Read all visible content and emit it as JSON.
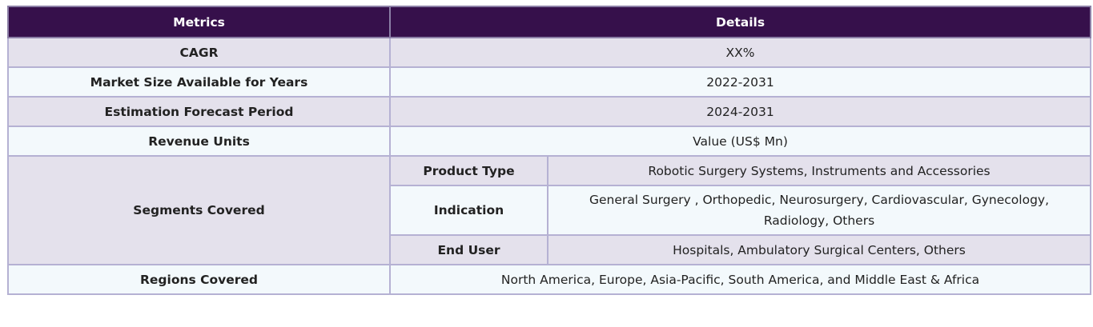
{
  "header": {
    "metrics": "Metrics",
    "details": "Details"
  },
  "rows": [
    {
      "metric": "CAGR",
      "detail": "XX%"
    },
    {
      "metric": "Market Size Available for Years",
      "detail": "2022-2031"
    },
    {
      "metric": "Estimation Forecast Period",
      "detail": "2024-2031"
    },
    {
      "metric": "Revenue Units",
      "detail": "Value (US$ Mn)"
    }
  ],
  "segments": {
    "label": "Segments Covered",
    "items": [
      {
        "name": "Product Type",
        "value": "Robotic Surgery Systems, Instruments and Accessories"
      },
      {
        "name": "Indication",
        "value": "General Surgery , Orthopedic, Neurosurgery, Cardiovascular, Gynecology, Radiology, Others"
      },
      {
        "name": "End User",
        "value": "Hospitals, Ambulatory Surgical Centers, Others"
      }
    ]
  },
  "regions": {
    "label": "Regions Covered",
    "value": "North America, Europe, Asia-Pacific, South America, and Middle East & Africa"
  },
  "colors": {
    "header_bg": "#36104b",
    "row_alt_bg": "#e4e1ec",
    "row_light_bg": "#f3f9fc",
    "border": "#b5b1d3"
  }
}
